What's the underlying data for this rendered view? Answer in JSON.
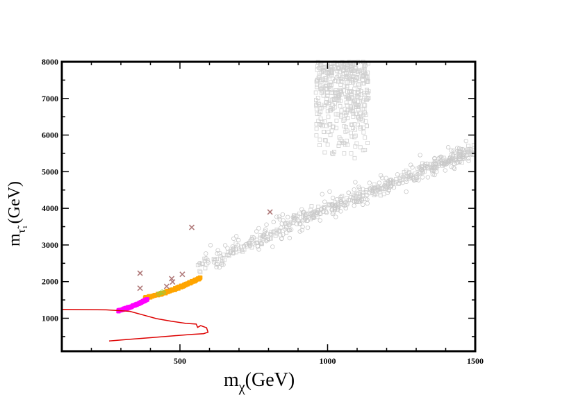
{
  "chart_data": {
    "type": "scatter",
    "title": "",
    "xlabel": {
      "main": "m",
      "sub": "χ",
      "unit": "(GeV)"
    },
    "ylabel": {
      "main": "m",
      "sub": "τ̃₁",
      "unit": "(GeV)"
    },
    "xlim": [
      100,
      1500
    ],
    "ylim": [
      100,
      8000
    ],
    "x_ticks": [
      500,
      1000,
      1500
    ],
    "x_tick_labels": [
      "500",
      "1000",
      "1500"
    ],
    "y_ticks": [
      1000,
      2000,
      3000,
      4000,
      5000,
      6000,
      7000,
      8000
    ],
    "y_tick_labels": [
      "1000",
      "2000",
      "3000",
      "4000",
      "5000",
      "6000",
      "7000",
      "8000"
    ],
    "grid": false,
    "legend": "none",
    "series": [
      {
        "marker": "square-open",
        "color": "#d0d0d0",
        "clusters": [
          {
            "x": [
              960,
              1140
            ],
            "y": [
              5300,
              8000
            ],
            "count": 420
          },
          {
            "x": [
              560,
              1500
            ],
            "y": [
              1800,
              5800
            ],
            "count": 320,
            "trend": [
              [
                560,
                2400
              ],
              [
                700,
                2900
              ],
              [
                800,
                3200
              ],
              [
                900,
                3700
              ],
              [
                1000,
                4000
              ],
              [
                1100,
                4300
              ],
              [
                1200,
                4600
              ],
              [
                1300,
                5000
              ],
              [
                1400,
                5300
              ],
              [
                1500,
                5600
              ]
            ]
          }
        ]
      },
      {
        "marker": "circle-open",
        "color": "#c8c8c8",
        "clusters": [
          {
            "x": [
              560,
              1480
            ],
            "y": [
              2000,
              6500
            ],
            "count": 260,
            "trend": [
              [
                560,
                2400
              ],
              [
                700,
                2900
              ],
              [
                800,
                3200
              ],
              [
                900,
                3700
              ],
              [
                1000,
                4000
              ],
              [
                1100,
                4300
              ],
              [
                1200,
                4600
              ],
              [
                1300,
                5000
              ],
              [
                1400,
                5300
              ],
              [
                1500,
                5600
              ]
            ]
          }
        ]
      },
      {
        "marker": "square-filled",
        "color": "#ffa500",
        "clusters": [
          {
            "x": [
              380,
              570
            ],
            "y": [
              1450,
              2150
            ],
            "count": 220,
            "trend": [
              [
                380,
                1550
              ],
              [
                450,
                1700
              ],
              [
                500,
                1850
              ],
              [
                570,
                2100
              ]
            ]
          }
        ]
      },
      {
        "marker": "square-filled",
        "color": "#ff00ff",
        "clusters": [
          {
            "x": [
              290,
              390
            ],
            "y": [
              1150,
              1550
            ],
            "count": 230,
            "trend": [
              [
                290,
                1200
              ],
              [
                330,
                1300
              ],
              [
                360,
                1400
              ],
              [
                390,
                1520
              ]
            ]
          }
        ]
      },
      {
        "marker": "circle-open",
        "color": "#8fcf3f",
        "points": [
          [
            433,
            1690
          ],
          [
            440,
            1720
          ],
          [
            428,
            1660
          ],
          [
            445,
            1700
          ]
        ]
      },
      {
        "marker": "x",
        "color": "#b07a7a",
        "points": [
          [
            365,
            2230
          ],
          [
            365,
            1820
          ],
          [
            472,
            2080
          ],
          [
            508,
            2200
          ],
          [
            540,
            3480
          ],
          [
            805,
            3900
          ],
          [
            455,
            1870
          ],
          [
            475,
            1990
          ]
        ]
      }
    ],
    "curve": {
      "color": "#dd0000",
      "points": [
        [
          100,
          1240
        ],
        [
          250,
          1230
        ],
        [
          330,
          1190
        ],
        [
          380,
          1080
        ],
        [
          420,
          990
        ],
        [
          470,
          920
        ],
        [
          520,
          860
        ],
        [
          555,
          840
        ],
        [
          560,
          750
        ],
        [
          570,
          800
        ],
        [
          590,
          740
        ],
        [
          595,
          620
        ],
        [
          580,
          580
        ],
        [
          540,
          560
        ],
        [
          480,
          520
        ],
        [
          400,
          470
        ],
        [
          320,
          420
        ],
        [
          260,
          380
        ]
      ]
    }
  }
}
